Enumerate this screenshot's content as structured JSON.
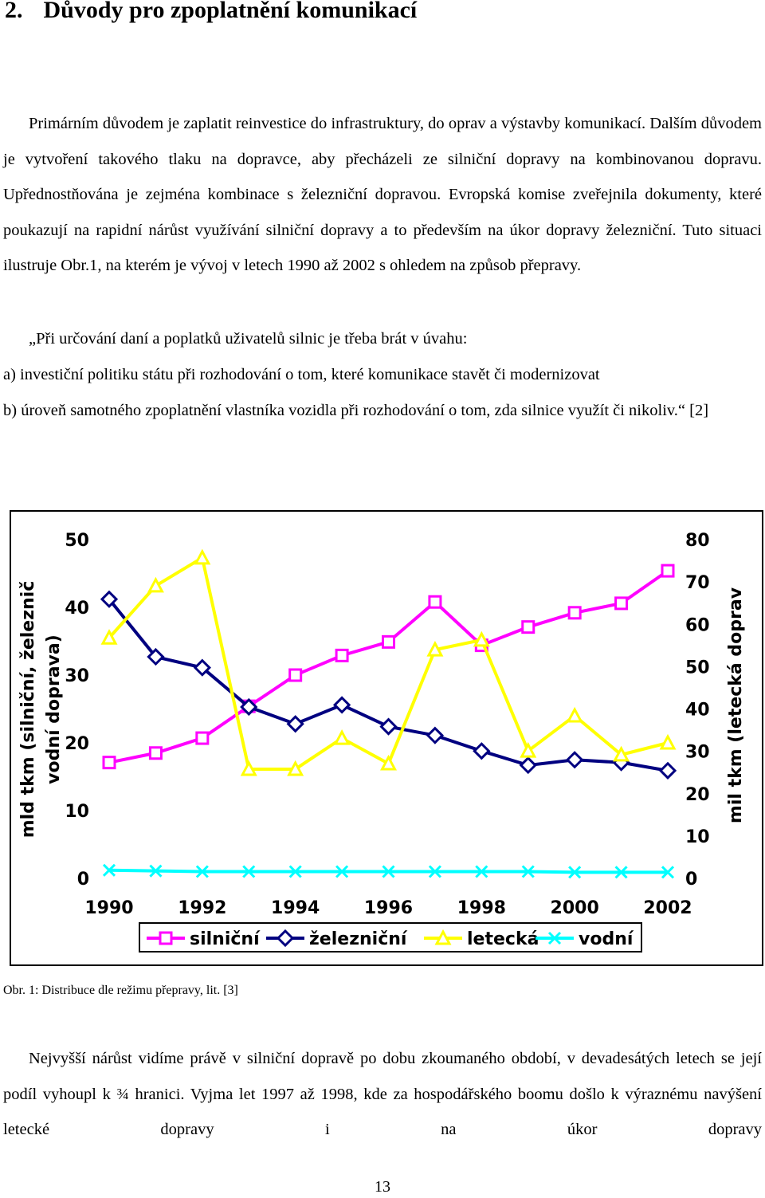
{
  "heading": {
    "number": "2.",
    "title": "Důvody pro zpoplatnění komunikací"
  },
  "paragraph_1": "Primárním důvodem je zaplatit reinvestice do infrastruktury, do oprav a výstavby komunikací. Dalším důvodem je vytvoření takového tlaku na dopravce, aby přecházeli ze silniční dopravy na kombinovanou dopravu. Upřednostňována je zejména kombinace s železniční dopravou. Evropská komise zveřejnila dokumenty, které poukazují na rapidní nárůst využívání silniční dopravy a to především na úkor dopravy železniční. Tuto situaci ilustruje Obr.1, na kterém je vývoj v letech 1990 až 2002 s ohledem na způsob přepravy.",
  "quote": {
    "intro": "„Při určování daní a poplatků uživatelů silnic je třeba brát v úvahu:",
    "item_a": "a) investiční politiku státu při rozhodování o tom, které komunikace stavět či modernizovat",
    "item_b": "b) úroveň samotného zpoplatnění vlastníka vozidla při rozhodování o tom, zda silnice využít či nikoliv.“ [2]"
  },
  "chart_data": {
    "type": "line",
    "y_label": [
      "mld tkm (silniční, železnič",
      "vodní doprava)"
    ],
    "y2_label": "mil tkm (letecká doprav",
    "x": [
      1990,
      1991,
      1992,
      1993,
      1994,
      1995,
      1996,
      1997,
      1998,
      1999,
      2000,
      2001,
      2002
    ],
    "xlim": [
      1990,
      2002
    ],
    "xticks": [
      1990,
      1992,
      1994,
      1996,
      1998,
      2000,
      2002
    ],
    "ylim": [
      0,
      50
    ],
    "yticks": [
      0,
      10,
      20,
      30,
      40,
      50
    ],
    "y2lim": [
      0,
      80
    ],
    "y2ticks": [
      0,
      10,
      20,
      30,
      40,
      50,
      60,
      70,
      80
    ],
    "series": [
      {
        "name": "silniční",
        "color": "#ff00ff",
        "marker": "square",
        "values": [
          17.1,
          18.5,
          20.7,
          25.4,
          30.0,
          32.9,
          34.9,
          40.8,
          34.4,
          37.1,
          39.2,
          40.6,
          45.4
        ]
      },
      {
        "name": "železniční",
        "color": "#000080",
        "marker": "diamond",
        "values": [
          41.2,
          32.7,
          31.1,
          25.3,
          22.8,
          25.6,
          22.4,
          21.1,
          18.8,
          16.7,
          17.5,
          17.1,
          15.9
        ]
      },
      {
        "name": "letecká",
        "color": "#ffff00",
        "marker": "triangle",
        "axis": "y2",
        "values": [
          56.8,
          69.1,
          75.7,
          25.8,
          25.8,
          33.1,
          27.1,
          54.0,
          56.3,
          30.1,
          38.4,
          29.2,
          32.0
        ]
      },
      {
        "name": "vodní",
        "color": "#00ffff",
        "marker": "cross",
        "values": [
          1.2,
          1.1,
          1.0,
          1.0,
          1.0,
          1.0,
          1.0,
          1.0,
          1.0,
          1.0,
          0.9,
          0.9,
          0.9
        ]
      }
    ]
  },
  "caption": "Obr. 1: Distribuce dle režimu přepravy, lit. [3]",
  "paragraph_2": "Nejvyšší nárůst vidíme právě v silniční dopravě po dobu zkoumaného období, v devadesátých letech se její podíl vyhoupl k ¾ hranici. Vyjma let 1997 až 1998, kde za hospodářského boomu došlo k výraznému navýšení letecké dopravy i na úkor dopravy",
  "page_number": "13"
}
